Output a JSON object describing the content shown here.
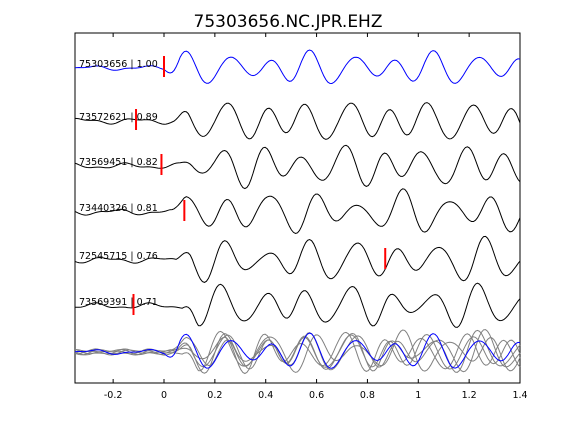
{
  "chart_data": {
    "type": "line",
    "title": "75303656.NC.JPR.EHZ",
    "xlim": [
      -0.35,
      1.4
    ],
    "xticks": [
      -0.2,
      0,
      0.2,
      0.4,
      0.6,
      0.8,
      1,
      1.2,
      1.4
    ],
    "xtick_labels": [
      "-0.2",
      "0",
      "0.2",
      "0.4",
      "0.6",
      "0.8",
      "1",
      "1.2",
      "1.4"
    ],
    "colors": {
      "reference": "#0000ff",
      "trace": "#000000",
      "overlay": "#808080",
      "pick": "#ff0000"
    },
    "traces": [
      {
        "label": "75303656 | 1.00",
        "pick": 0.0,
        "color": "#0000ff"
      },
      {
        "label": "73572621 | 0.89",
        "pick": -0.11,
        "color": "#000000"
      },
      {
        "label": "73569451 | 0.82",
        "pick": -0.01,
        "color": "#000000"
      },
      {
        "label": "73440326 | 0.81",
        "pick": 0.08,
        "color": "#000000"
      },
      {
        "label": "72545715 | 0.76",
        "pick": 0.87,
        "color": "#000000"
      },
      {
        "label": "73569391 | 0.71",
        "pick": -0.12,
        "color": "#000000"
      }
    ],
    "stack": {
      "label": "",
      "overlay_color": "#808080",
      "reference_color": "#0000ff"
    }
  }
}
